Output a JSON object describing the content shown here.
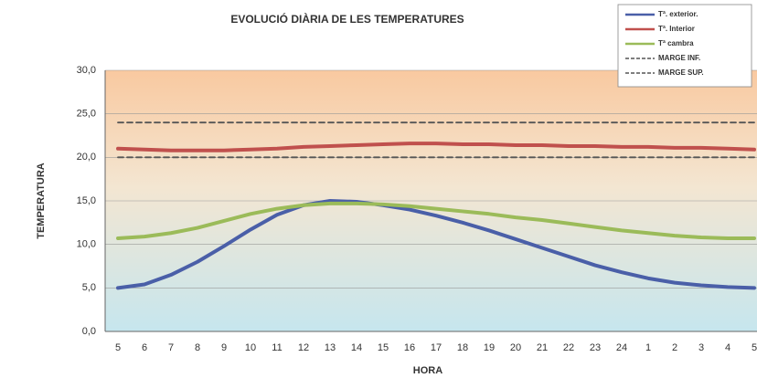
{
  "chart_data": {
    "type": "line",
    "title": "EVOLUCIÓ DIÀRIA DE LES TEMPERATURES",
    "x_label": "HORA",
    "y_label": "TEMPERATURA",
    "categories": [
      "5",
      "6",
      "7",
      "8",
      "9",
      "10",
      "11",
      "12",
      "13",
      "14",
      "15",
      "16",
      "17",
      "18",
      "19",
      "20",
      "21",
      "22",
      "23",
      "24",
      "1",
      "2",
      "3",
      "4",
      "5"
    ],
    "ylim": [
      0,
      30
    ],
    "yticks": [
      {
        "value": 0,
        "label": "0,0"
      },
      {
        "value": 5,
        "label": "5,0"
      },
      {
        "value": 10,
        "label": "10,0"
      },
      {
        "value": 15,
        "label": "15,0"
      },
      {
        "value": 20,
        "label": "20,0"
      },
      {
        "value": 25,
        "label": "25,0"
      },
      {
        "value": 30,
        "label": "30,0"
      }
    ],
    "grid": true,
    "legend": "top-right",
    "series": [
      {
        "name": "Tª. exterior.",
        "color": "#4a5fa8",
        "dashed": false,
        "values": [
          5.0,
          5.4,
          6.5,
          8.0,
          9.8,
          11.7,
          13.4,
          14.5,
          15.0,
          14.9,
          14.5,
          14.0,
          13.3,
          12.5,
          11.6,
          10.6,
          9.6,
          8.6,
          7.6,
          6.8,
          6.1,
          5.6,
          5.3,
          5.1,
          5.0
        ]
      },
      {
        "name": "Tª. Interior",
        "color": "#c0504d",
        "dashed": false,
        "values": [
          21.0,
          20.9,
          20.8,
          20.8,
          20.8,
          20.9,
          21.0,
          21.2,
          21.3,
          21.4,
          21.5,
          21.6,
          21.6,
          21.5,
          21.5,
          21.4,
          21.4,
          21.3,
          21.3,
          21.2,
          21.2,
          21.1,
          21.1,
          21.0,
          20.9
        ]
      },
      {
        "name": "Tª cambra",
        "color": "#9bbb59",
        "dashed": false,
        "values": [
          10.7,
          10.9,
          11.3,
          11.9,
          12.7,
          13.5,
          14.1,
          14.5,
          14.7,
          14.7,
          14.6,
          14.4,
          14.1,
          13.8,
          13.5,
          13.1,
          12.8,
          12.4,
          12.0,
          11.6,
          11.3,
          11.0,
          10.8,
          10.7,
          10.7
        ]
      },
      {
        "name": "MARGE INF.",
        "color": "#555555",
        "dashed": true,
        "values": [
          20,
          20,
          20,
          20,
          20,
          20,
          20,
          20,
          20,
          20,
          20,
          20,
          20,
          20,
          20,
          20,
          20,
          20,
          20,
          20,
          20,
          20,
          20,
          20,
          20
        ]
      },
      {
        "name": "MARGE SUP.",
        "color": "#555555",
        "dashed": true,
        "values": [
          24,
          24,
          24,
          24,
          24,
          24,
          24,
          24,
          24,
          24,
          24,
          24,
          24,
          24,
          24,
          24,
          24,
          24,
          24,
          24,
          24,
          24,
          24,
          24,
          24
        ]
      }
    ]
  }
}
